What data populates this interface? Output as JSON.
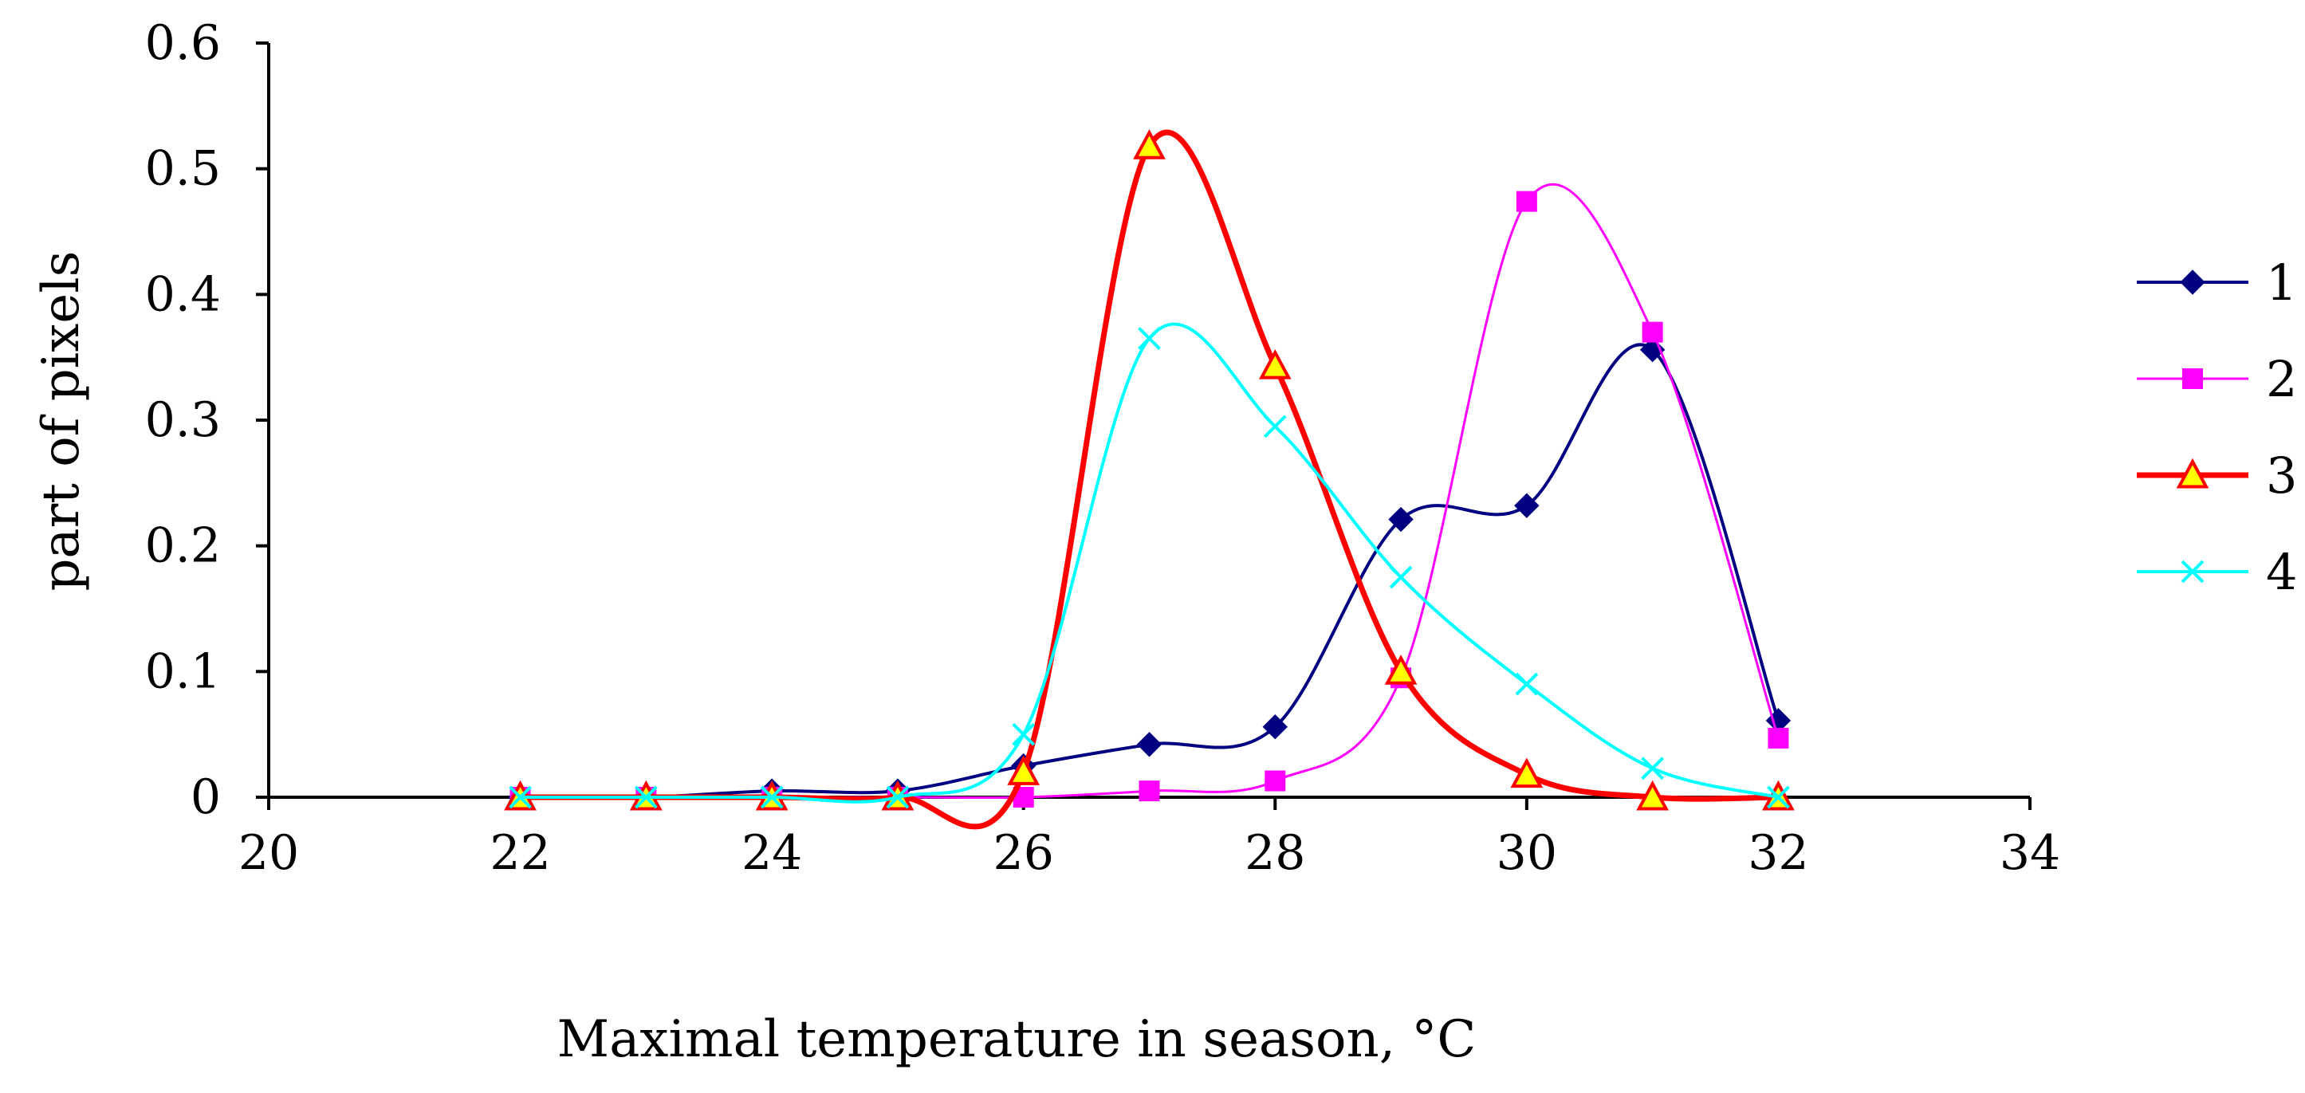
{
  "chart_data": {
    "type": "line",
    "title": "",
    "xlabel": "Maximal temperature in season, °C",
    "ylabel": "part of pixels",
    "xlim": [
      20,
      34
    ],
    "ylim": [
      0,
      0.6
    ],
    "x_ticks": [
      "20",
      "22",
      "24",
      "26",
      "28",
      "30",
      "32",
      "34"
    ],
    "y_ticks": [
      "0",
      "0.1",
      "0.2",
      "0.3",
      "0.4",
      "0.5",
      "0.6"
    ],
    "grid": false,
    "legend_position": "right",
    "x": [
      22,
      23,
      24,
      25,
      26,
      27,
      28,
      29,
      30,
      31,
      32
    ],
    "series": [
      {
        "name": "1",
        "color": "#000080",
        "marker": "diamond",
        "values": [
          0,
          0,
          0.005,
          0.005,
          0.025,
          0.042,
          0.056,
          0.221,
          0.232,
          0.356,
          0.061
        ]
      },
      {
        "name": "2",
        "color": "#FF00FF",
        "marker": "square",
        "values": [
          0,
          0,
          0,
          0,
          0,
          0.005,
          0.013,
          0.095,
          0.474,
          0.37,
          0.047
        ]
      },
      {
        "name": "3",
        "color": "#FF0000",
        "marker": "triangle",
        "values": [
          0,
          0,
          0,
          0,
          0.02,
          0.518,
          0.343,
          0.1,
          0.018,
          0,
          0
        ]
      },
      {
        "name": "4",
        "color": "#00FFFF",
        "marker": "x",
        "values": [
          0,
          0,
          0,
          0,
          0.05,
          0.365,
          0.295,
          0.175,
          0.09,
          0.023,
          0
        ]
      }
    ]
  }
}
